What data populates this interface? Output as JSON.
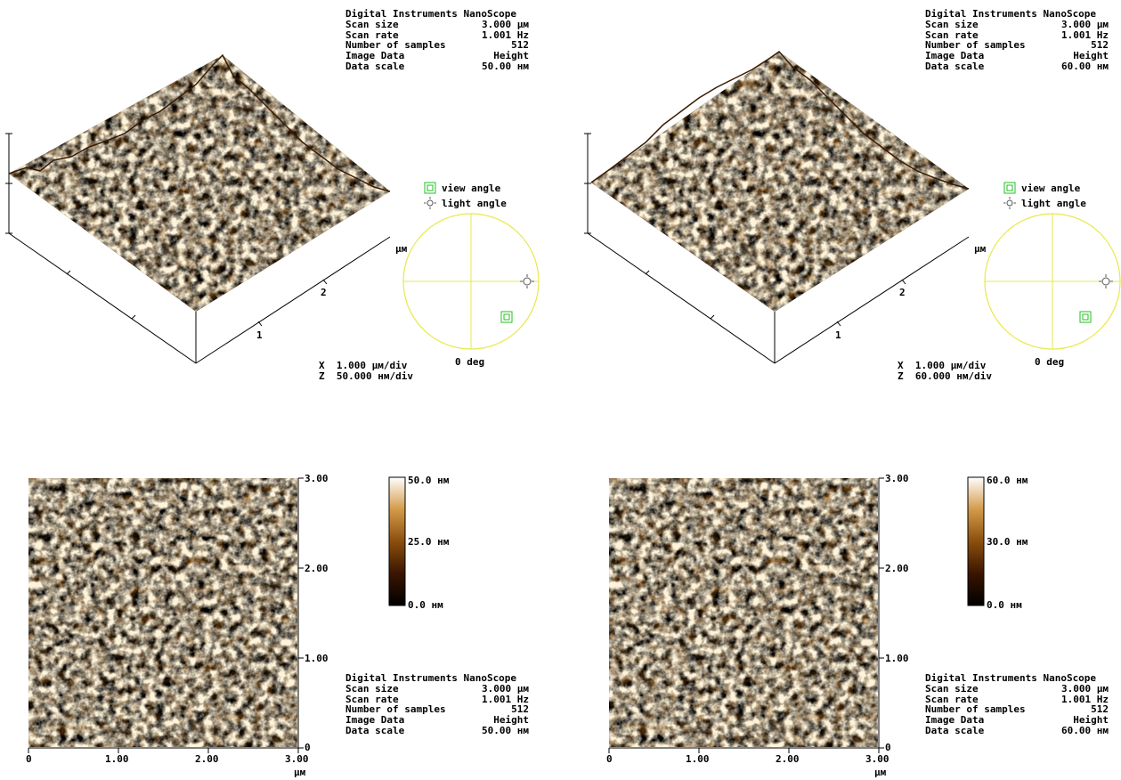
{
  "panels_3d": [
    {
      "info": {
        "header": "Digital Instruments NanoScope",
        "rows": [
          {
            "label": "Scan size",
            "value": "3.000 µм"
          },
          {
            "label": "Scan rate",
            "value": "1.001 Hz"
          },
          {
            "label": "Number of samples",
            "value": "512"
          },
          {
            "label": "Image Data",
            "value": "Height"
          },
          {
            "label": "Data scale",
            "value": "50.00 нм"
          }
        ]
      },
      "view_angle_label": "view angle",
      "light_angle_label": "light angle",
      "deg_label": "0 deg",
      "axis_unit": "µм",
      "axis_ticks": [
        "1",
        "2"
      ],
      "x_scale": "X  1.000 µм/div",
      "z_scale": "Z  50.000 нм/div"
    },
    {
      "info": {
        "header": "Digital Instruments NanoScope",
        "rows": [
          {
            "label": "Scan size",
            "value": "3.000 µм"
          },
          {
            "label": "Scan rate",
            "value": "1.001 Hz"
          },
          {
            "label": "Number of samples",
            "value": "512"
          },
          {
            "label": "Image Data",
            "value": "Height"
          },
          {
            "label": "Data scale",
            "value": "60.00 нм"
          }
        ]
      },
      "view_angle_label": "view angle",
      "light_angle_label": "light angle",
      "deg_label": "0 deg",
      "axis_unit": "µм",
      "axis_ticks": [
        "1",
        "2"
      ],
      "x_scale": "X  1.000 µм/div",
      "z_scale": "Z  60.000 нм/div"
    }
  ],
  "panels_2d": [
    {
      "info": {
        "header": "Digital Instruments NanoScope",
        "rows": [
          {
            "label": "Scan size",
            "value": "3.000 µм"
          },
          {
            "label": "Scan rate",
            "value": "1.001 Hz"
          },
          {
            "label": "Number of samples",
            "value": "512"
          },
          {
            "label": "Image Data",
            "value": "Height"
          },
          {
            "label": "Data scale",
            "value": "50.00 нм"
          }
        ]
      },
      "colorbar": {
        "top": "50.0 нм",
        "mid": "25.0 нм",
        "bottom": "0.0 нм"
      },
      "x_ticks": [
        "0",
        "1.00",
        "2.00",
        "3.00"
      ],
      "y_ticks": [
        "3.00",
        "2.00",
        "1.00",
        "0"
      ],
      "unit": "µм"
    },
    {
      "info": {
        "header": "Digital Instruments NanoScope",
        "rows": [
          {
            "label": "Scan size",
            "value": "3.000 µм"
          },
          {
            "label": "Scan rate",
            "value": "1.001 Hz"
          },
          {
            "label": "Number of samples",
            "value": "512"
          },
          {
            "label": "Image Data",
            "value": "Height"
          },
          {
            "label": "Data scale",
            "value": "60.00 нм"
          }
        ]
      },
      "colorbar": {
        "top": "60.0 нм",
        "mid": "30.0 нм",
        "bottom": "0.0 нм"
      },
      "x_ticks": [
        "0",
        "1.00",
        "2.00",
        "3.00"
      ],
      "y_ticks": [
        "3.00",
        "2.00",
        "1.00",
        "0"
      ],
      "unit": "µм"
    }
  ],
  "colors": {
    "afm_dark": "#2a1200",
    "afm_mid": "#8a4f0e",
    "afm_light": "#f5e2b0",
    "circle": "#e8e84a",
    "view_icon": "#22c022"
  }
}
